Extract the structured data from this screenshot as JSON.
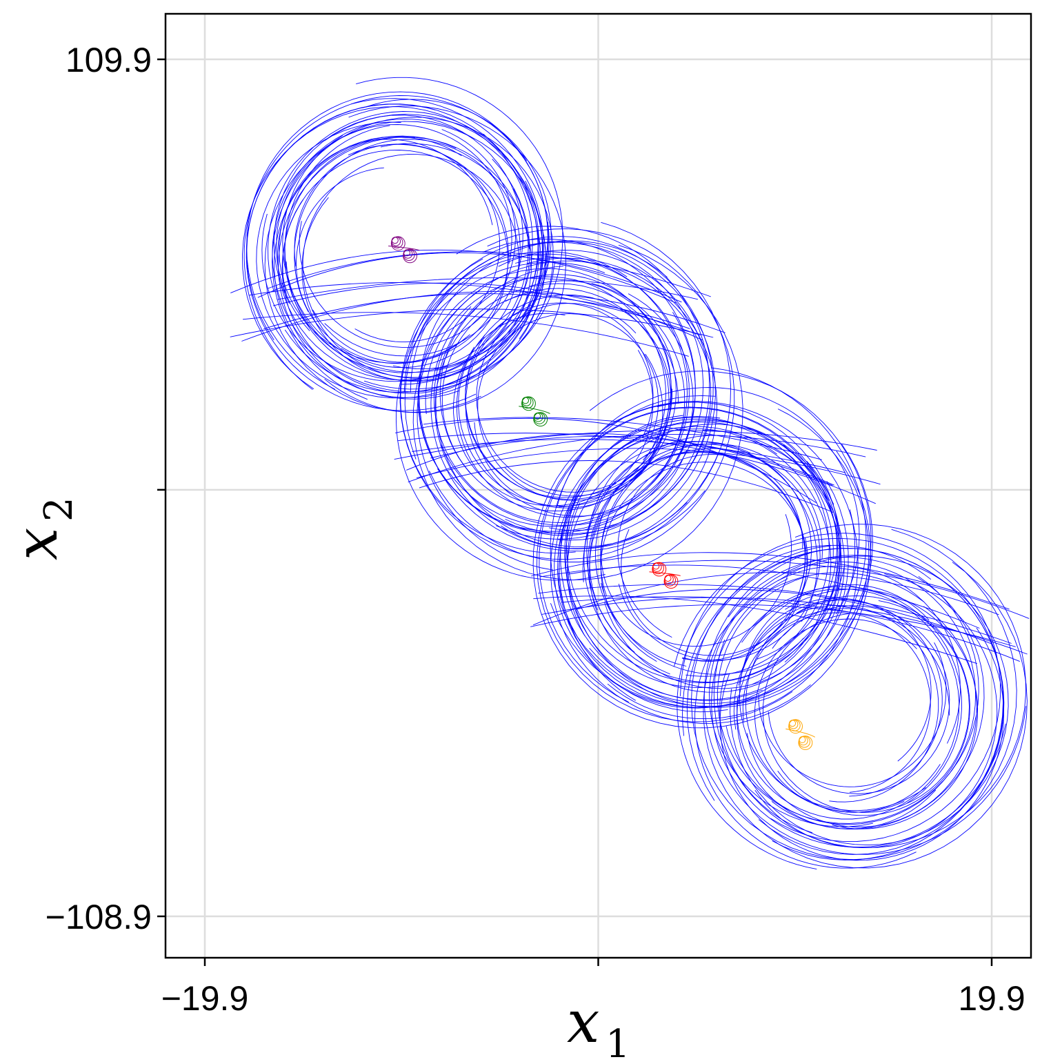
{
  "chart_data": {
    "type": "line",
    "xlabel": "x",
    "xlabel_sub": "1",
    "ylabel": "x",
    "ylabel_sub": "2",
    "xlim": [
      -19.9,
      19.9
    ],
    "ylim": [
      -108.9,
      109.9
    ],
    "x_ticks": [
      {
        "value": -19.9,
        "label": "−19.9"
      },
      {
        "value": 0,
        "label": ""
      },
      {
        "value": 19.9,
        "label": "19.9"
      }
    ],
    "y_ticks": [
      {
        "value": 109.9,
        "label": "109.9"
      },
      {
        "value": 0,
        "label": ""
      },
      {
        "value": -108.9,
        "label": "−108.9"
      }
    ],
    "grid": true,
    "colors": {
      "background": "#ffffff",
      "grid": "#dddddd",
      "trajectory": "#0000ff",
      "purple": "#800080",
      "green": "#008000",
      "red": "#ff0000",
      "orange": "#ffa500"
    },
    "series": [
      {
        "color": "#0000ff",
        "centers": [
          [
            -9.8,
            60.5
          ],
          [
            -1.8,
            22.5
          ],
          [
            5.4,
            -16.5
          ],
          [
            12.9,
            -55.0
          ]
        ],
        "r_min_frac": 0.55,
        "r_max_frac": 1.0,
        "outer_radius_x": 9.0
      },
      {
        "color": "#800080",
        "centers": [
          [
            -10.2,
            63.3
          ],
          [
            -9.6,
            60.1
          ]
        ],
        "radius_x": 0.35
      },
      {
        "color": "#008000",
        "centers": [
          [
            -3.6,
            22.4
          ],
          [
            -3.0,
            18.4
          ]
        ],
        "radius_x": 0.35
      },
      {
        "color": "#ff0000",
        "centers": [
          [
            3.0,
            -19.9
          ],
          [
            3.6,
            -23.0
          ]
        ],
        "radius_x": 0.35
      },
      {
        "color": "#ffa500",
        "centers": [
          [
            9.9,
            -60.0
          ],
          [
            10.4,
            -64.2
          ]
        ],
        "radius_x": 0.35
      }
    ]
  }
}
